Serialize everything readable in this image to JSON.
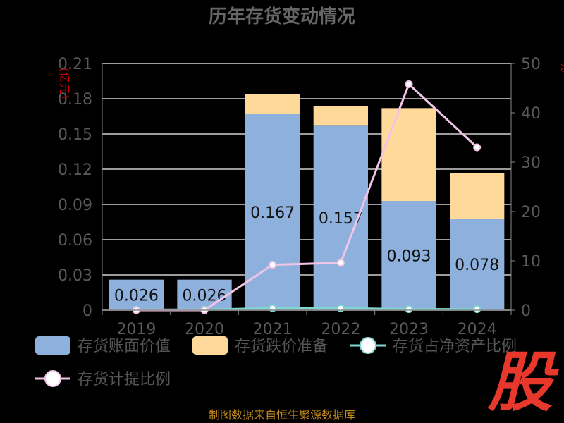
{
  "chart_data": {
    "type": "bar",
    "title": "历年存货变动情况",
    "categories": [
      "2019",
      "2020",
      "2021",
      "2022",
      "2023",
      "2024"
    ],
    "left_axis": {
      "unit_label": "(亿元)",
      "ylim": [
        0,
        0.21
      ],
      "ticks": [
        "0",
        "0.03",
        "0.06",
        "0.09",
        "0.12",
        "0.15",
        "0.18",
        "0.21"
      ]
    },
    "right_axis": {
      "unit_label": "%",
      "ylim": [
        0,
        50
      ],
      "ticks": [
        "0",
        "10",
        "20",
        "30",
        "40",
        "50"
      ]
    },
    "series": [
      {
        "name": "存货账面价值",
        "kind": "stacked-bar",
        "axis": "left",
        "color": "#8eb0dd",
        "values": [
          0.026,
          0.026,
          0.167,
          0.157,
          0.093,
          0.078
        ],
        "labels": [
          "0.026",
          "0.026",
          "0.167",
          "0.157",
          "0.093",
          "0.078"
        ]
      },
      {
        "name": "存货跌价准备",
        "kind": "stacked-bar",
        "axis": "left",
        "color": "#ffd999",
        "values": [
          0,
          0,
          0.017,
          0.017,
          0.079,
          0.039
        ]
      },
      {
        "name": "存货占净资产比例",
        "kind": "line",
        "axis": "right",
        "color": "#7fd8d2",
        "values": [
          0.1,
          0.1,
          0.4,
          0.4,
          0.2,
          0.2
        ]
      },
      {
        "name": "存货计提比例",
        "kind": "line",
        "axis": "right",
        "color": "#f2c4e6",
        "values": [
          0,
          0,
          9.2,
          9.6,
          45.8,
          33.0
        ]
      }
    ],
    "grid": true,
    "legend": "bottom"
  },
  "source": "制图数据来自恒生聚源数据库",
  "logo_text": "股"
}
